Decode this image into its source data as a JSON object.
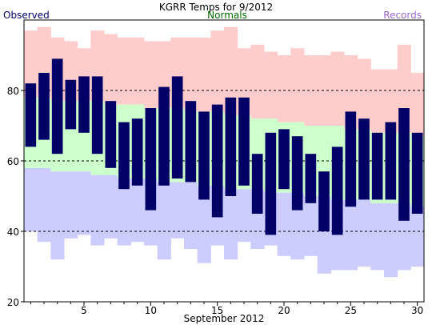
{
  "chart_data": {
    "type": "bar",
    "title": "KGRR Temps for 9/2012",
    "xlabel": "September 2012",
    "ylabel": "",
    "legend": [
      {
        "name": "Observed",
        "color": "#000066",
        "placement": "top-left"
      },
      {
        "name": "Normals",
        "color": "#006600",
        "placement": "top-center"
      },
      {
        "name": "Records",
        "color": "#9966cc",
        "placement": "top-right"
      }
    ],
    "xlim": [
      0.5,
      30.5
    ],
    "ylim": [
      20,
      100
    ],
    "x_ticks": [
      5,
      10,
      15,
      20,
      25,
      30
    ],
    "y_ticks": [
      20,
      40,
      60,
      80
    ],
    "dashed_gridlines": [
      40,
      60,
      80
    ],
    "colors": {
      "records_fill": "#ffcccc",
      "normals_fill": "#ccffcc",
      "record_low_fill": "#ccccff",
      "observed_bar": "#000066",
      "gridline": "#000000"
    },
    "days": [
      1,
      2,
      3,
      4,
      5,
      6,
      7,
      8,
      9,
      10,
      11,
      12,
      13,
      14,
      15,
      16,
      17,
      18,
      19,
      20,
      21,
      22,
      23,
      24,
      25,
      26,
      27,
      28,
      29,
      30
    ],
    "observed_high": [
      82,
      85,
      89,
      83,
      84,
      84,
      77,
      71,
      72,
      75,
      81,
      84,
      77,
      74,
      76,
      78,
      78,
      62,
      68,
      69,
      67,
      62,
      57,
      64,
      74,
      72,
      68,
      71,
      75,
      68
    ],
    "observed_low": [
      64,
      66,
      62,
      69,
      68,
      62,
      58,
      52,
      53,
      46,
      53,
      55,
      54,
      49,
      44,
      50,
      53,
      45,
      39,
      52,
      46,
      48,
      40,
      39,
      47,
      49,
      49,
      49,
      43,
      45
    ],
    "normal_high": [
      78,
      78,
      77,
      77,
      77,
      77,
      76,
      76,
      76,
      75,
      75,
      75,
      74,
      74,
      74,
      73,
      73,
      72,
      72,
      71,
      71,
      70,
      70,
      70,
      69,
      69,
      68,
      68,
      68,
      67
    ],
    "normal_low": [
      58,
      58,
      57,
      57,
      57,
      56,
      56,
      55,
      55,
      55,
      54,
      54,
      54,
      53,
      53,
      52,
      52,
      52,
      51,
      51,
      51,
      50,
      50,
      49,
      49,
      49,
      48,
      48,
      48,
      47
    ],
    "record_high": [
      97,
      98,
      95,
      94,
      92,
      97,
      96,
      95,
      95,
      94,
      94,
      95,
      95,
      95,
      97,
      98,
      92,
      93,
      91,
      90,
      92,
      90,
      90,
      91,
      90,
      89,
      86,
      86,
      93,
      85
    ],
    "record_low": [
      40,
      37,
      32,
      38,
      39,
      36,
      38,
      36,
      37,
      36,
      32,
      38,
      35,
      31,
      36,
      32,
      37,
      35,
      36,
      33,
      32,
      33,
      28,
      29,
      29,
      30,
      29,
      27,
      29,
      30
    ]
  }
}
